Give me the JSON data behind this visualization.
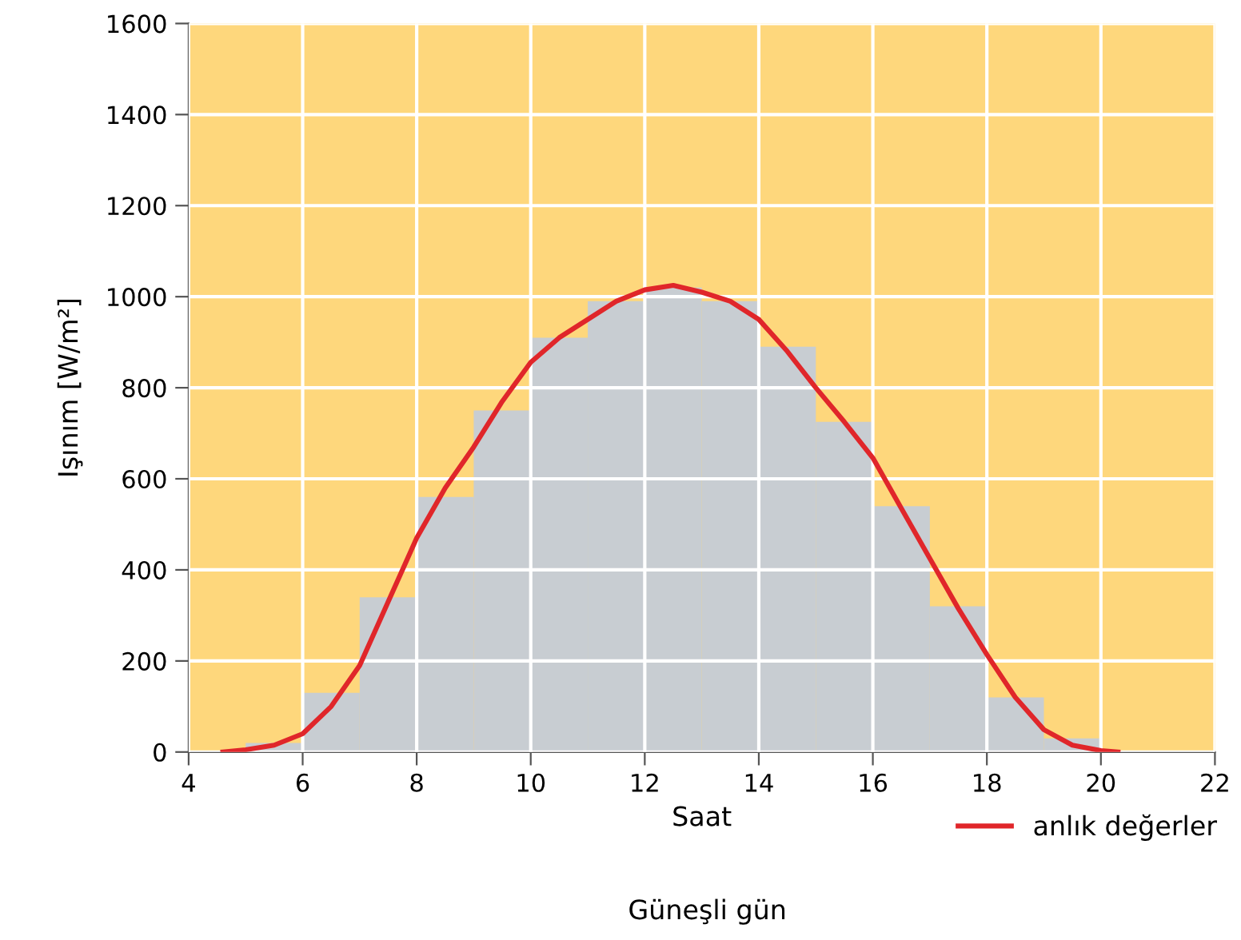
{
  "chart_data": {
    "type": "histogram",
    "xlabel": "Saat",
    "ylabel": "Işınım [W/m²]",
    "annotations": [
      "Güneşli gün"
    ],
    "bins": [
      5,
      6,
      7,
      8,
      9,
      10,
      11,
      12,
      13,
      14,
      15,
      16,
      17,
      18,
      19,
      20
    ],
    "values": [
      20,
      130,
      340,
      560,
      750,
      910,
      990,
      1020,
      990,
      890,
      725,
      540,
      320,
      120,
      30
    ],
    "color": "#c8cdd2",
    "series": [
      {
        "name": "anlık değerler",
        "type": "line",
        "color": "#e0262a",
        "x": [
          4.6,
          5,
          5.5,
          6,
          6.5,
          7,
          7.5,
          8,
          8.5,
          9,
          9.5,
          10,
          10.5,
          11,
          11.5,
          12,
          12.5,
          13,
          13.5,
          14,
          14.5,
          15,
          15.5,
          16,
          16.5,
          17,
          17.5,
          18,
          18.5,
          19,
          19.5,
          20,
          20.3
        ],
        "values": [
          0,
          5,
          15,
          40,
          100,
          190,
          330,
          470,
          580,
          670,
          770,
          856,
          910,
          950,
          990,
          1015,
          1025,
          1010,
          990,
          950,
          880,
          800,
          725,
          646,
          535,
          425,
          315,
          214,
          120,
          49,
          15,
          3,
          0
        ]
      }
    ],
    "xlim": [
      4,
      22
    ],
    "xticks": [
      4,
      6,
      8,
      10,
      12,
      14,
      16,
      18,
      20,
      22
    ],
    "ylim": [
      0,
      1600
    ],
    "yticks": [
      0,
      200,
      400,
      600,
      800,
      1000,
      1200,
      1400,
      1600
    ],
    "grid": true,
    "legend": "bottom right"
  }
}
